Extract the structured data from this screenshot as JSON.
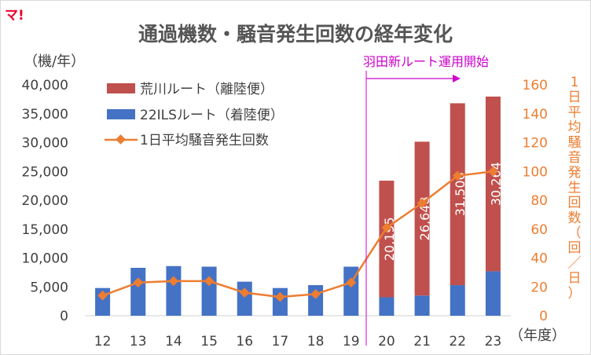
{
  "logo_text": "マ!",
  "chart_data": {
    "type": "bar",
    "title": "通過機数・騒音発生回数の経年変化",
    "left_axis_unit": "（機/年）",
    "right_axis_label": "1日平均騒音発生回数（回/日）",
    "right_axis_label_chars": [
      "1",
      "日",
      "平",
      "均",
      "騒",
      "音",
      "発",
      "生",
      "回",
      "数",
      "（",
      "回",
      "／",
      "日",
      "）"
    ],
    "x_unit": "（年度）",
    "categories": [
      "12",
      "13",
      "14",
      "15",
      "16",
      "17",
      "18",
      "19",
      "20",
      "21",
      "22",
      "23"
    ],
    "y_left_ticks": [
      "0",
      "5,000",
      "10,000",
      "15,000",
      "20,000",
      "25,000",
      "30,000",
      "35,000",
      "40,000"
    ],
    "y_left_lim": [
      0,
      40000
    ],
    "y_right_ticks": [
      "0",
      "20",
      "40",
      "60",
      "80",
      "100",
      "120",
      "140",
      "160"
    ],
    "y_right_lim": [
      0,
      160
    ],
    "legend": {
      "arakawa": "荒川ルート（離陸便）",
      "ils": "22ILSルート（着陸便）",
      "noise": "1日平均騒音発生回数"
    },
    "series": [
      {
        "name": "22ILSルート（着陸便）",
        "type": "bar",
        "stack": true,
        "axis": "left",
        "color": "#4472C4",
        "values": [
          4800,
          8300,
          8600,
          8500,
          5900,
          4800,
          5300,
          8500,
          3200,
          3500,
          5300,
          7700
        ]
      },
      {
        "name": "荒川ルート（離陸便）",
        "type": "bar",
        "stack": true,
        "axis": "left",
        "color": "#C0504D",
        "values": [
          0,
          0,
          0,
          0,
          0,
          0,
          0,
          0,
          20195,
          26648,
          31506,
          30264
        ]
      },
      {
        "name": "1日平均騒音発生回数",
        "type": "line",
        "axis": "right",
        "color": "#ED7D31",
        "values": [
          14,
          23,
          24,
          24,
          16,
          13,
          15,
          23,
          61,
          78,
          97,
          100
        ]
      }
    ],
    "bar_labels": [
      {
        "index": 8,
        "text": "20,195"
      },
      {
        "index": 9,
        "text": "26,648"
      },
      {
        "index": 10,
        "text": "31,506"
      },
      {
        "index": 11,
        "text": "30,264"
      }
    ],
    "annotation": {
      "text": "羽田新ルート運用開始",
      "from_index": 8
    }
  }
}
